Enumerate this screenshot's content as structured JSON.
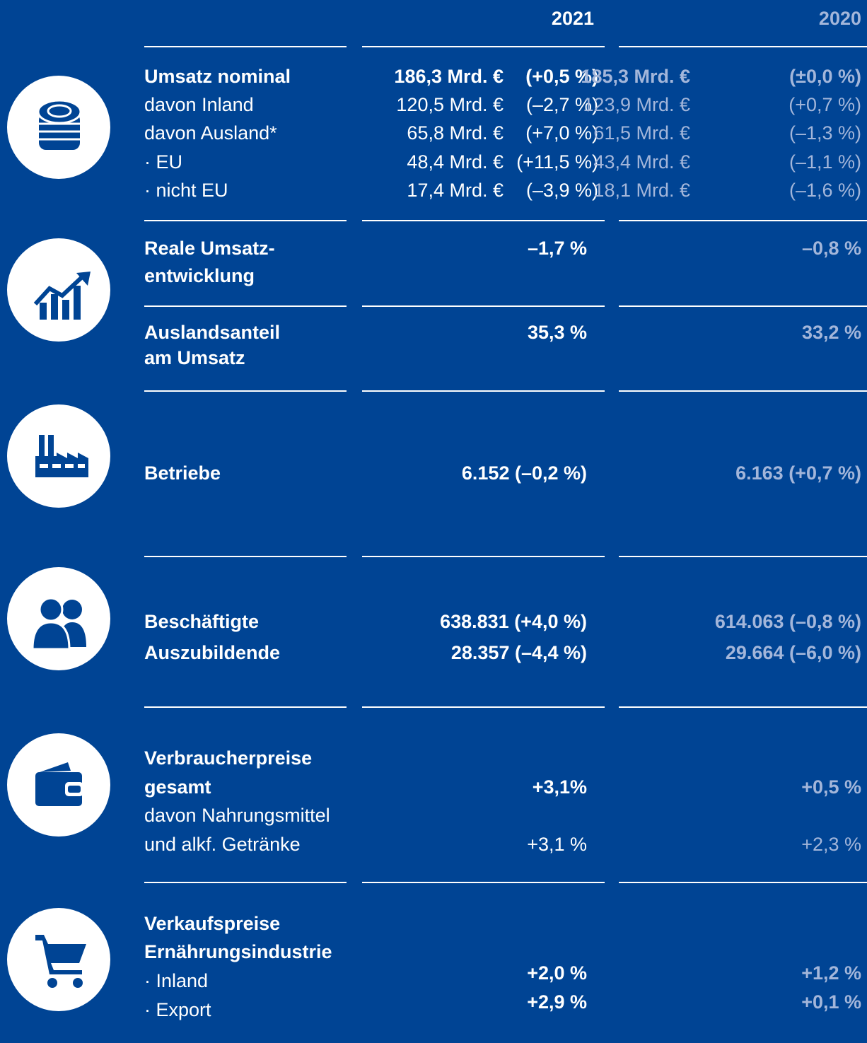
{
  "columns": [
    "2021",
    "2020"
  ],
  "revenue": {
    "rows": [
      {
        "label": "Umsatz nominal",
        "amount_2021": "186,3 Mrd. €",
        "change_2021": "(+0,5 %)",
        "amount_2020": "185,3 Mrd. €",
        "change_2020": "(±0,0 %)"
      },
      {
        "label": "davon Inland",
        "amount_2021": "120,5 Mrd. €",
        "change_2021": "(–2,7 %)",
        "amount_2020": "123,9 Mrd. €",
        "change_2020": "(+0,7 %)"
      },
      {
        "label": "davon Ausland*",
        "amount_2021": "65,8 Mrd. €",
        "change_2021": "(+7,0 %)",
        "amount_2020": "61,5 Mrd. €",
        "change_2020": "(–1,3 %)"
      },
      {
        "label": "· EU",
        "amount_2021": "48,4 Mrd. €",
        "change_2021": "(+11,5 %)",
        "amount_2020": "43,4 Mrd. €",
        "change_2020": "(–1,1 %)"
      },
      {
        "label": "· nicht EU",
        "amount_2021": "17,4 Mrd. €",
        "change_2021": "(–3,9 %)",
        "amount_2020": "18,1 Mrd. €",
        "change_2020": "(–1,6 %)"
      }
    ]
  },
  "real_growth": {
    "label": [
      "Reale Umsatz-",
      "entwicklung"
    ],
    "value_2021": "–1,7 %",
    "value_2020": "–0,8 %"
  },
  "export_share": {
    "label": [
      "Auslandsanteil",
      "am Umsatz"
    ],
    "value_2021": "35,3 %",
    "value_2020": "33,2 %"
  },
  "businesses": {
    "label": "Betriebe",
    "value_2021": "6.152 (–0,2 %)",
    "value_2020": "6.163 (+0,7 %)"
  },
  "employees": {
    "rows": [
      {
        "label": "Beschäftigte",
        "value_2021": "638.831 (+4,0 %)",
        "value_2020": "614.063 (–0,8 %)"
      },
      {
        "label": "Auszubildende",
        "value_2021": "28.357 (–4,4 %)",
        "value_2020": "29.664 (–6,0 %)"
      }
    ]
  },
  "consumer_prices": {
    "label": [
      "Verbraucherpreise",
      "gesamt"
    ],
    "value_2021": "+3,1%",
    "value_2020": "+0,5 %",
    "sub_label": [
      "davon Nahrungsmittel",
      "und alkf. Getränke"
    ],
    "sub_value_2021": "+3,1 %",
    "sub_value_2020": "+2,3 %"
  },
  "selling_prices": {
    "label": [
      "Verkaufspreise",
      "Ernährungsindustrie"
    ],
    "rows": [
      {
        "label": "· Inland",
        "value_2021": "+2,0 %",
        "value_2020": "+1,2 %"
      },
      {
        "label": "· Export",
        "value_2021": "+2,9 %",
        "value_2020": "+0,1 %"
      }
    ]
  }
}
